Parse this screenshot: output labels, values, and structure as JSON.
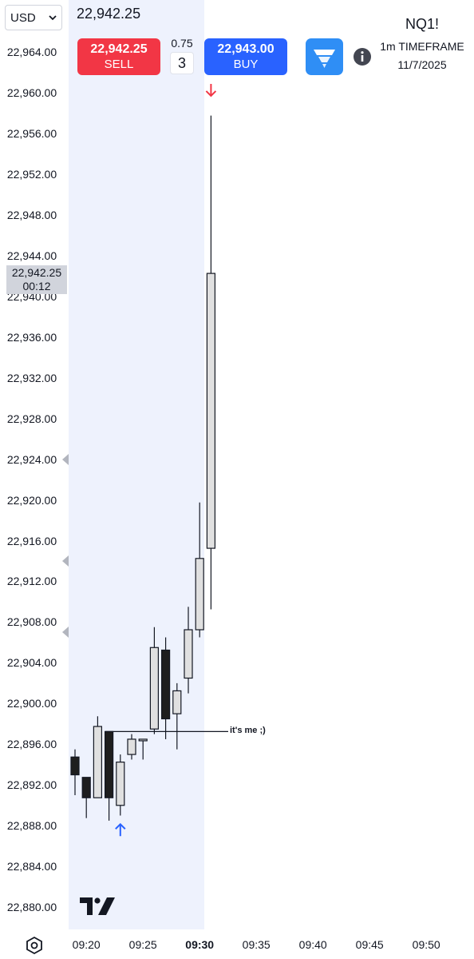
{
  "currency": {
    "value": "USD"
  },
  "last_price": "22,942.25",
  "order_panel": {
    "sell_price": "22,942.25",
    "sell_label": "SELL",
    "buy_price": "22,943.00",
    "buy_label": "BUY",
    "spread": "0.75",
    "quantity": "3"
  },
  "info": {
    "symbol": "NQ1!",
    "timeframe": "1m TIMEFRAME",
    "date": "11/7/2025"
  },
  "price_badge": {
    "price": "22,942.25",
    "countdown": "00:12"
  },
  "annotation": "it's me ;)",
  "icons": {
    "app": "tradingview-app-icon",
    "info": "info-icon",
    "settings": "settings-icon",
    "logo": "tradingview-logo-icon",
    "sell_marker": "arrow-down-icon",
    "buy_marker": "arrow-up-icon"
  },
  "colors": {
    "sell": "#f23645",
    "buy": "#2962ff",
    "up_body": "#e0e0e0",
    "down_body": "#1e1e1e",
    "session": "#eef2fd",
    "app_icon": "#2f8ef5"
  },
  "chart_data": {
    "type": "candlestick",
    "ylim": [
      22878,
      22966
    ],
    "yticks": [
      "22,964.00",
      "22,960.00",
      "22,956.00",
      "22,952.00",
      "22,948.00",
      "22,944.00",
      "22,940.00",
      "22,936.00",
      "22,932.00",
      "22,928.00",
      "22,924.00",
      "22,920.00",
      "22,916.00",
      "22,912.00",
      "22,908.00",
      "22,904.00",
      "22,900.00",
      "22,896.00",
      "22,892.00",
      "22,888.00",
      "22,884.00",
      "22,880.00"
    ],
    "xticks": [
      "09:20",
      "09:25",
      "09:30",
      "09:35",
      "09:40",
      "09:45",
      "09:50"
    ],
    "xticks_bold": [
      "09:30"
    ],
    "first_minute": "09:19",
    "candles": [
      {
        "time": "09:19",
        "open": 22894.75,
        "high": 22895.5,
        "low": 22891.0,
        "close": 22893.0
      },
      {
        "time": "09:20",
        "open": 22892.75,
        "high": 22892.75,
        "low": 22888.75,
        "close": 22890.75
      },
      {
        "time": "09:21",
        "open": 22890.75,
        "high": 22898.75,
        "low": 22890.75,
        "close": 22897.75
      },
      {
        "time": "09:22",
        "open": 22897.25,
        "high": 22897.25,
        "low": 22888.5,
        "close": 22890.75
      },
      {
        "time": "09:23",
        "open": 22890.0,
        "high": 22895.0,
        "low": 22889.0,
        "close": 22894.25
      },
      {
        "time": "09:24",
        "open": 22895.0,
        "high": 22897.0,
        "low": 22894.5,
        "close": 22896.5
      },
      {
        "time": "09:25",
        "open": 22896.5,
        "high": 22896.5,
        "low": 22894.5,
        "close": 22896.5
      },
      {
        "time": "09:26",
        "open": 22897.5,
        "high": 22907.5,
        "low": 22897.0,
        "close": 22905.5
      },
      {
        "time": "09:27",
        "open": 22905.25,
        "high": 22906.5,
        "low": 22896.5,
        "close": 22898.5
      },
      {
        "time": "09:28",
        "open": 22899.0,
        "high": 22902.0,
        "low": 22895.5,
        "close": 22901.25
      },
      {
        "time": "09:29",
        "open": 22902.5,
        "high": 22909.5,
        "low": 22901.0,
        "close": 22907.25
      },
      {
        "time": "09:30",
        "open": 22907.25,
        "high": 22919.75,
        "low": 22906.5,
        "close": 22914.25
      },
      {
        "time": "09:31",
        "open": 22915.25,
        "high": 22957.75,
        "low": 22909.25,
        "close": 22942.25
      }
    ],
    "annotation_line": {
      "price": 22897.25,
      "from": "09:22",
      "to": "09:31"
    },
    "markers": [
      {
        "type": "sell",
        "time": "09:31",
        "price": 22960
      },
      {
        "type": "buy",
        "time": "09:23",
        "price": 22888
      }
    ],
    "axis_flags": [
      22924,
      22914,
      22907
    ]
  }
}
